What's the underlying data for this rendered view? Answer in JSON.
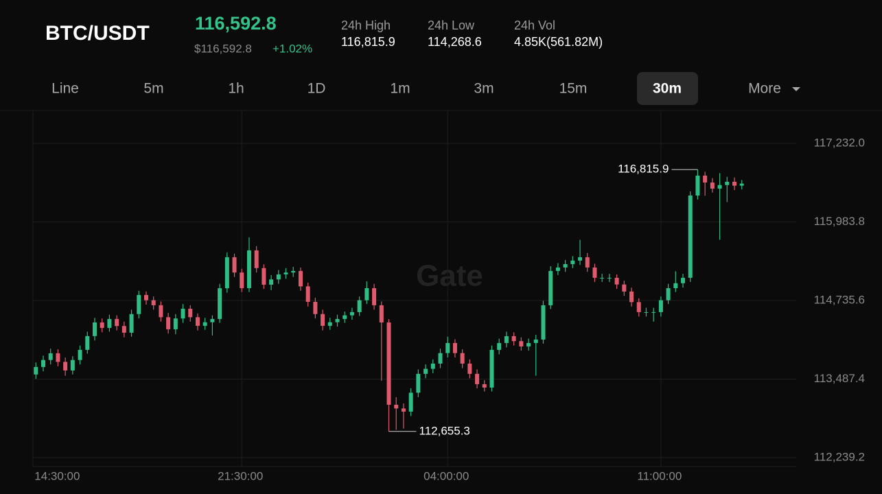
{
  "header": {
    "pair": "BTC/USDT",
    "price": "116,592.8",
    "fiat_price": "$116,592.8",
    "change": "+1.02%",
    "stats": [
      {
        "label": "24h High",
        "value": "116,815.9"
      },
      {
        "label": "24h Low",
        "value": "114,268.6"
      },
      {
        "label": "24h Vol",
        "value": "4.85K(561.82M)"
      }
    ]
  },
  "tabs": {
    "items": [
      "Line",
      "5m",
      "1h",
      "1D",
      "1m",
      "3m",
      "15m",
      "30m",
      "More"
    ],
    "selected": "30m"
  },
  "chart_data": {
    "type": "candlestick",
    "watermark": "Gate",
    "up_color": "#2ebd85",
    "down_color": "#e05a6e",
    "grid": true,
    "categories": [
      null,
      null,
      null,
      null,
      null,
      null,
      null,
      null,
      null,
      null,
      null,
      null,
      null,
      null,
      null,
      null,
      null,
      null,
      null,
      null,
      null,
      null,
      null,
      null,
      null,
      null,
      null,
      null,
      null,
      null,
      null,
      null,
      null,
      null,
      null,
      null,
      null,
      null,
      null,
      null,
      null,
      null,
      null,
      null,
      null,
      null,
      null,
      null,
      null,
      null,
      null,
      null,
      null,
      null,
      null,
      null,
      null,
      null,
      null,
      null,
      null,
      null,
      null,
      null,
      null,
      null,
      null,
      null,
      null,
      null,
      null,
      null,
      null,
      null,
      null,
      null,
      null,
      null,
      null,
      null,
      null,
      null,
      null,
      null,
      null,
      null,
      null,
      null,
      null,
      null,
      null,
      null,
      null,
      null,
      null,
      null,
      null
    ],
    "open": [
      113560,
      113679,
      113790,
      113897,
      113760,
      113624,
      113790,
      113951,
      114170,
      114387,
      114300,
      114442,
      114330,
      114224,
      114520,
      114823,
      114740,
      114660,
      114470,
      114278,
      114450,
      114605,
      114470,
      114333,
      114390,
      114442,
      114930,
      115423,
      115180,
      114932,
      115532,
      115250,
      114987,
      115070,
      115150,
      115180,
      115205,
      114960,
      114714,
      114520,
      114333,
      114390,
      114442,
      114500,
      114551,
      114740,
      114932,
      114660,
      114387,
      113079,
      113020,
      112970,
      113270,
      113570,
      113650,
      113733,
      113900,
      114060,
      113900,
      113733,
      113570,
      113406,
      113352,
      113951,
      114060,
      114169,
      114090,
      114006,
      114060,
      114115,
      114660,
      115205,
      115260,
      115314,
      115370,
      115423,
      115260,
      115096,
      115096,
      115096,
      114990,
      114878,
      114710,
      114551,
      114551,
      114551,
      114740,
      114932,
      115010,
      115096,
      116404,
      116720,
      116610,
      116513,
      116570,
      116622,
      116560
    ],
    "high": [
      113750,
      113860,
      113970,
      113960,
      113830,
      113850,
      114020,
      114240,
      114460,
      114450,
      114510,
      114500,
      114400,
      114590,
      114890,
      114880,
      114800,
      114720,
      114540,
      114520,
      114680,
      114660,
      114530,
      114460,
      114500,
      115000,
      115500,
      115480,
      115240,
      115740,
      115600,
      115310,
      115140,
      115220,
      115250,
      115270,
      115260,
      115020,
      114780,
      114590,
      114460,
      114510,
      114560,
      114620,
      114800,
      115040,
      115000,
      114720,
      114440,
      113200,
      113100,
      113340,
      113640,
      113720,
      113800,
      113970,
      114160,
      114120,
      113960,
      113800,
      113640,
      113470,
      114020,
      114130,
      114240,
      114230,
      114150,
      114130,
      114190,
      114730,
      115280,
      115330,
      115380,
      115440,
      115700,
      115490,
      115320,
      115160,
      115160,
      115150,
      115050,
      114940,
      114770,
      114620,
      114620,
      114800,
      115000,
      115200,
      115160,
      116470,
      116815.9,
      116780,
      116680,
      116760,
      116700,
      116690,
      116650
    ],
    "low": [
      113490,
      113610,
      113720,
      113690,
      113540,
      113560,
      113720,
      113890,
      114100,
      114230,
      114240,
      114260,
      114150,
      114160,
      114450,
      114670,
      114590,
      114400,
      114210,
      114200,
      114380,
      114400,
      114260,
      114270,
      114180,
      114380,
      114860,
      115110,
      114870,
      114870,
      115180,
      114920,
      114900,
      115000,
      115080,
      115110,
      114890,
      114640,
      114450,
      114260,
      114270,
      114320,
      114380,
      114430,
      114490,
      114680,
      114590,
      113460,
      112655.3,
      112680,
      112700,
      112900,
      113200,
      113500,
      113580,
      113660,
      113830,
      113830,
      113660,
      113500,
      113340,
      113290,
      113290,
      113880,
      113990,
      114020,
      113940,
      113940,
      113540,
      114050,
      114600,
      115140,
      115190,
      115250,
      115300,
      115190,
      115030,
      115030,
      115030,
      114920,
      114810,
      114640,
      114480,
      114480,
      114400,
      114480,
      114680,
      114870,
      114940,
      115030,
      116340,
      116400,
      116450,
      115700,
      116300,
      116490,
      116500
    ],
    "close": [
      113679,
      113790,
      113897,
      113760,
      113624,
      113790,
      113951,
      114170,
      114387,
      114300,
      114442,
      114330,
      114224,
      114520,
      114823,
      114740,
      114660,
      114470,
      114278,
      114450,
      114605,
      114470,
      114333,
      114390,
      114442,
      114930,
      115423,
      115180,
      114932,
      115532,
      115250,
      114987,
      115070,
      115150,
      115180,
      115205,
      114960,
      114714,
      114520,
      114333,
      114390,
      114442,
      114500,
      114551,
      114740,
      114932,
      114660,
      114387,
      113079,
      113020,
      112970,
      113270,
      113570,
      113650,
      113733,
      113900,
      114060,
      113900,
      113733,
      113570,
      113406,
      113352,
      113951,
      114060,
      114169,
      114090,
      114006,
      114060,
      114115,
      114660,
      115205,
      115260,
      115314,
      115370,
      115423,
      115260,
      115096,
      115096,
      115096,
      114990,
      114878,
      114710,
      114551,
      114551,
      114551,
      114740,
      114932,
      115010,
      115096,
      116404,
      116720,
      116610,
      116513,
      116570,
      116622,
      116560,
      116592.8
    ],
    "xlim": [
      -0.4,
      103.4
    ],
    "xticks": [
      {
        "value": 0,
        "label": "14:30:00"
      },
      {
        "value": 28,
        "label": "21:30:00"
      },
      {
        "value": 56,
        "label": "04:00:00"
      },
      {
        "value": 85,
        "label": "11:00:00"
      }
    ],
    "ylim": [
      112097,
      117744
    ],
    "yticks": [
      {
        "value": 112239.2,
        "label": "112,239.2"
      },
      {
        "value": 113487.4,
        "label": "113,487.4"
      },
      {
        "value": 114735.6,
        "label": "114,735.6"
      },
      {
        "value": 115983.8,
        "label": "115,983.8"
      },
      {
        "value": 117232.0,
        "label": "117,232.0"
      }
    ],
    "annotations": [
      {
        "label": "116,815.9",
        "value": 116815.9
      },
      {
        "label": "112,655.3",
        "value": 112655.3
      }
    ]
  }
}
